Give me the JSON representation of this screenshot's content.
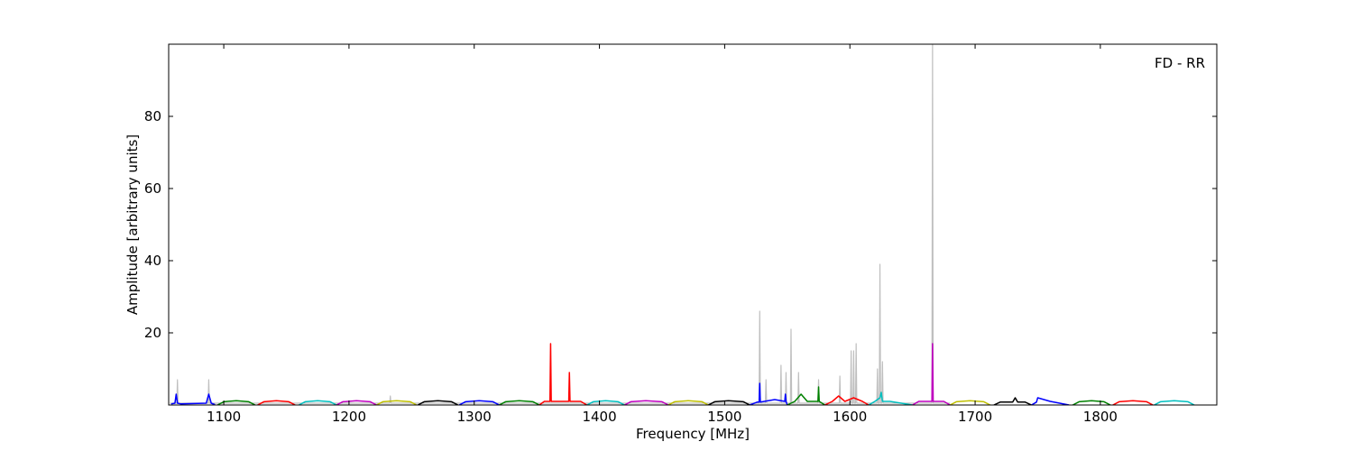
{
  "chart_data": {
    "type": "line",
    "xlabel": "Frequency [MHz]",
    "ylabel": "Amplitude [arbitrary units]",
    "annotation": "FD - RR",
    "xlim": [
      1056,
      1893
    ],
    "ylim": [
      0,
      100
    ],
    "xticks": [
      1100,
      1200,
      1300,
      1400,
      1500,
      1600,
      1700,
      1800
    ],
    "yticks": [
      20,
      40,
      60,
      80
    ],
    "series": [
      {
        "color": "#bfbfbf",
        "x": [
          1057,
          1062.5,
          1063,
          1063.5,
          1087.5,
          1088,
          1088.5,
          1232.5,
          1233,
          1233.5,
          1527.5,
          1528,
          1528.5,
          1532.5,
          1533,
          1533.5,
          1544.5,
          1545,
          1545.5,
          1548.5,
          1549,
          1549.5,
          1552.5,
          1553,
          1553.5,
          1558.5,
          1559,
          1559.5,
          1574.5,
          1575,
          1575.5,
          1591.5,
          1592,
          1592.5,
          1600.5,
          1601,
          1601.5,
          1602.5,
          1603,
          1603.5,
          1604.5,
          1605,
          1605.5,
          1621.5,
          1622,
          1622.5,
          1623.5,
          1624,
          1624.5,
          1625.5,
          1626,
          1626.5,
          1665.5,
          1666,
          1666.5,
          1680
        ],
        "values": [
          0.5,
          0.5,
          7,
          0.5,
          0.5,
          7,
          0.5,
          0.5,
          2.5,
          0.5,
          0.5,
          26,
          0.5,
          0.5,
          7,
          0.5,
          0.5,
          11,
          0.5,
          0.5,
          9,
          0.5,
          0.5,
          21,
          0.5,
          0.5,
          9,
          0.5,
          0.5,
          7,
          0.5,
          0.5,
          8,
          0.5,
          0.5,
          15,
          0.5,
          0.5,
          15,
          0.5,
          0.5,
          17,
          0.5,
          0.5,
          10,
          0.5,
          0.5,
          39,
          0.5,
          0.5,
          12,
          0.5,
          0.5,
          100,
          0.5,
          0.5
        ]
      },
      {
        "color": "#0000ff",
        "x": [
          1058,
          1061,
          1062,
          1063,
          1066,
          1086,
          1088,
          1090,
          1093
        ],
        "values": [
          0.3,
          0.5,
          3,
          0.5,
          0.3,
          0.5,
          3,
          0.5,
          0.1
        ]
      },
      {
        "color": "#008000",
        "x": [
          1095,
          1100,
          1110,
          1120,
          1125
        ],
        "values": [
          0,
          0.9,
          1.2,
          0.9,
          0
        ]
      },
      {
        "color": "#ff0000",
        "x": [
          1127,
          1132,
          1142,
          1152,
          1157
        ],
        "values": [
          0,
          0.9,
          1.2,
          0.9,
          0
        ]
      },
      {
        "color": "#00bfbf",
        "x": [
          1160,
          1165,
          1175,
          1185,
          1190
        ],
        "values": [
          0,
          0.9,
          1.2,
          0.9,
          0
        ]
      },
      {
        "color": "#bf00bf",
        "x": [
          1190,
          1195,
          1206,
          1217,
          1222
        ],
        "values": [
          0,
          0.9,
          1.2,
          0.9,
          0
        ]
      },
      {
        "color": "#bfbf00",
        "x": [
          1222,
          1227,
          1238,
          1249,
          1254
        ],
        "values": [
          0,
          0.9,
          1.2,
          0.9,
          0
        ]
      },
      {
        "color": "#000000",
        "x": [
          1255,
          1260,
          1271,
          1282,
          1287
        ],
        "values": [
          0,
          0.9,
          1.2,
          0.9,
          0
        ]
      },
      {
        "color": "#0000ff",
        "x": [
          1288,
          1293,
          1304,
          1315,
          1320
        ],
        "values": [
          0,
          0.9,
          1.2,
          0.9,
          0
        ]
      },
      {
        "color": "#008000",
        "x": [
          1320,
          1325,
          1336,
          1347,
          1352
        ],
        "values": [
          0,
          0.9,
          1.2,
          0.9,
          0
        ]
      },
      {
        "color": "#ff0000",
        "x": [
          1352,
          1356,
          1360.5,
          1361,
          1361.5,
          1375.5,
          1376,
          1376.5,
          1385,
          1390
        ],
        "values": [
          0,
          1,
          1,
          17,
          1,
          1,
          9,
          1,
          1,
          0
        ]
      },
      {
        "color": "#00bfbf",
        "x": [
          1390,
          1395,
          1405,
          1415,
          1420
        ],
        "values": [
          0,
          0.9,
          1.2,
          0.9,
          0
        ]
      },
      {
        "color": "#bf00bf",
        "x": [
          1420,
          1425,
          1437,
          1450,
          1455
        ],
        "values": [
          0,
          0.9,
          1.2,
          0.9,
          0
        ]
      },
      {
        "color": "#bfbf00",
        "x": [
          1455,
          1460,
          1471,
          1482,
          1487
        ],
        "values": [
          0,
          0.9,
          1.2,
          0.9,
          0
        ]
      },
      {
        "color": "#000000",
        "x": [
          1487,
          1492,
          1503,
          1515,
          1520
        ],
        "values": [
          0,
          0.9,
          1.2,
          0.9,
          0
        ]
      },
      {
        "color": "#0000ff",
        "x": [
          1520,
          1526,
          1527.5,
          1528,
          1528.5,
          1540,
          1548,
          1548.5,
          1549,
          1550
        ],
        "values": [
          0,
          0.8,
          0.8,
          6,
          0.8,
          1.5,
          1,
          3,
          1,
          0
        ]
      },
      {
        "color": "#008000",
        "x": [
          1550,
          1556,
          1561,
          1566,
          1574.5,
          1575,
          1575.5,
          1580
        ],
        "values": [
          0,
          1,
          3,
          1,
          1,
          5,
          1,
          0
        ]
      },
      {
        "color": "#ff0000",
        "x": [
          1580,
          1586,
          1591,
          1596,
          1603,
          1610,
          1615
        ],
        "values": [
          0,
          1,
          2.5,
          1,
          2,
          1,
          0
        ]
      },
      {
        "color": "#00bfbf",
        "x": [
          1615,
          1620,
          1624,
          1625,
          1626,
          1632,
          1650
        ],
        "values": [
          0,
          1,
          2,
          3.5,
          1,
          1,
          0
        ]
      },
      {
        "color": "#bf00bf",
        "x": [
          1650,
          1655,
          1665.5,
          1666,
          1666.5,
          1675,
          1680
        ],
        "values": [
          0,
          1,
          1,
          17,
          1,
          1,
          0
        ]
      },
      {
        "color": "#bfbf00",
        "x": [
          1680,
          1685,
          1696,
          1707,
          1712
        ],
        "values": [
          0,
          0.9,
          1.2,
          0.9,
          0
        ]
      },
      {
        "color": "#000000",
        "x": [
          1715,
          1720,
          1730,
          1732,
          1734,
          1740,
          1745
        ],
        "values": [
          0,
          0.8,
          0.8,
          2,
          0.8,
          0.8,
          0
        ]
      },
      {
        "color": "#0000ff",
        "x": [
          1745,
          1749,
          1750,
          1760,
          1775
        ],
        "values": [
          0,
          0.8,
          2,
          1,
          0
        ]
      },
      {
        "color": "#008000",
        "x": [
          1778,
          1783,
          1793,
          1803,
          1808
        ],
        "values": [
          0,
          0.9,
          1.2,
          0.9,
          0
        ]
      },
      {
        "color": "#ff0000",
        "x": [
          1810,
          1815,
          1826,
          1837,
          1842
        ],
        "values": [
          0,
          0.9,
          1.2,
          0.9,
          0
        ]
      },
      {
        "color": "#00bfbf",
        "x": [
          1843,
          1848,
          1859,
          1870,
          1875
        ],
        "values": [
          0,
          0.9,
          1.2,
          0.9,
          0
        ]
      }
    ]
  }
}
